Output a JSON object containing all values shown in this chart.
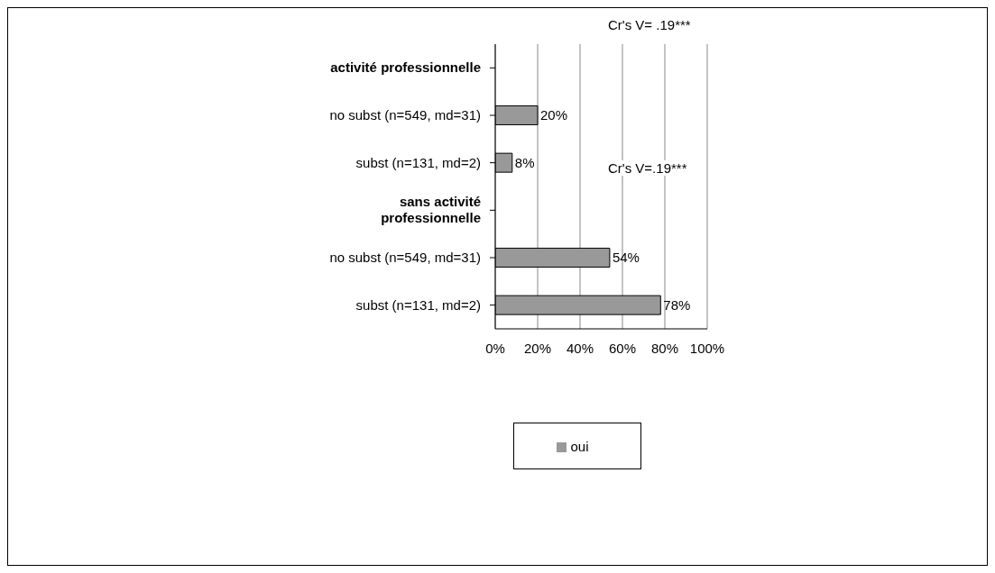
{
  "chart_data": {
    "type": "bar",
    "orientation": "horizontal",
    "categories": [
      "activité professionnelle",
      "no subst (n=549, md=31)",
      "subst (n=131, md=2)",
      "sans activité professionnelle",
      "no subst (n=549, md=31)",
      "subst (n=131, md=2)"
    ],
    "series": [
      {
        "name": "oui",
        "color": "#999999",
        "values": [
          null,
          20,
          8,
          null,
          54,
          78
        ],
        "value_labels": [
          null,
          "20%",
          "8%",
          null,
          "54%",
          "78%"
        ]
      }
    ],
    "xlim": [
      0,
      100
    ],
    "xticks": [
      {
        "value": 0,
        "label": "0%"
      },
      {
        "value": 20,
        "label": "20%"
      },
      {
        "value": 40,
        "label": "40%"
      },
      {
        "value": 60,
        "label": "60%"
      },
      {
        "value": 80,
        "label": "80%"
      },
      {
        "value": 100,
        "label": "100%"
      }
    ],
    "grid": "x",
    "legend": "bottom",
    "annotations": [
      "Cr's V= .19***",
      "Cr's V=.19***"
    ]
  }
}
